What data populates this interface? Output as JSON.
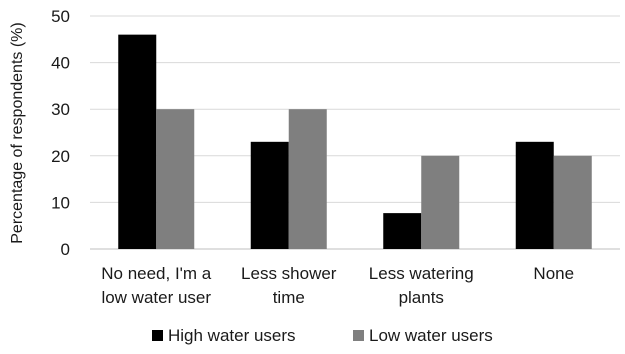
{
  "chart_data": {
    "type": "bar",
    "title": "",
    "xlabel": "",
    "ylabel": "Percentage of respondents (%)",
    "ylim": [
      0,
      50
    ],
    "yticks": [
      "0",
      "10",
      "20",
      "30",
      "40",
      "50"
    ],
    "grid": true,
    "legend_position": "bottom",
    "categories": [
      [
        "No need, I'm a",
        "low water user"
      ],
      [
        "Less shower",
        "time"
      ],
      [
        "Less watering",
        "plants"
      ],
      [
        "None"
      ]
    ],
    "series": [
      {
        "name": "High water users",
        "color": "#000000",
        "values": [
          46,
          23,
          7.7,
          23
        ]
      },
      {
        "name": "Low water users",
        "color": "#7f7f7f",
        "values": [
          30,
          30,
          20,
          20
        ]
      }
    ]
  }
}
